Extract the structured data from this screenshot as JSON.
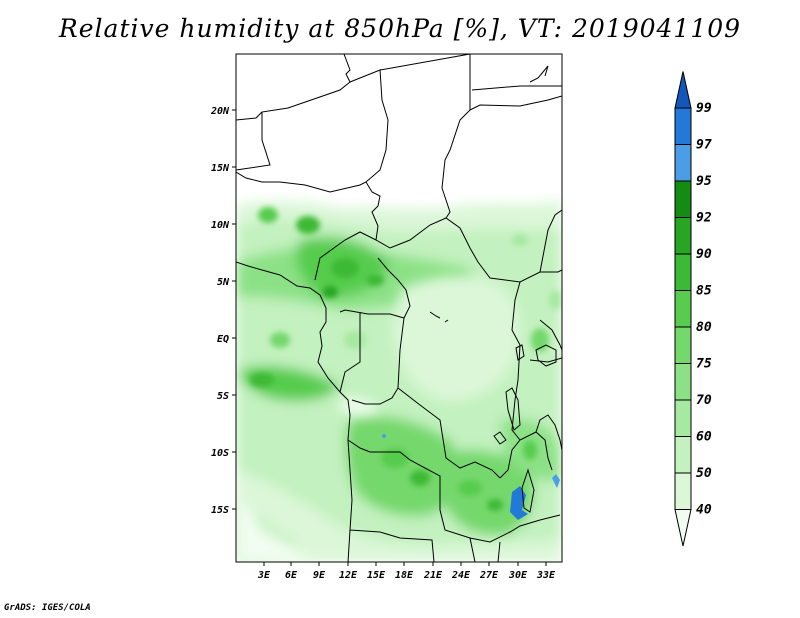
{
  "title": "Relative humidity at 850hPa [%], VT: 2019041109",
  "credit": "GrADS: IGES/COLA",
  "lat_labels": [
    "20N",
    "15N",
    "10N",
    "5N",
    "EQ",
    "5S",
    "10S",
    "15S"
  ],
  "lon_labels": [
    "3E",
    "6E",
    "9E",
    "12E",
    "15E",
    "18E",
    "21E",
    "24E",
    "27E",
    "30E",
    "33E"
  ],
  "colorbar": {
    "levels": [
      "40",
      "50",
      "60",
      "70",
      "75",
      "80",
      "85",
      "90",
      "92",
      "95",
      "97",
      "99"
    ],
    "colors": [
      "#f1fdf0",
      "#dbf7d8",
      "#c3f1bf",
      "#a6e9a1",
      "#8ce186",
      "#74d86c",
      "#57cc4e",
      "#3cb936",
      "#27a523",
      "#148c14",
      "#4b9ee6",
      "#2379d8",
      "#1357b8"
    ]
  }
}
